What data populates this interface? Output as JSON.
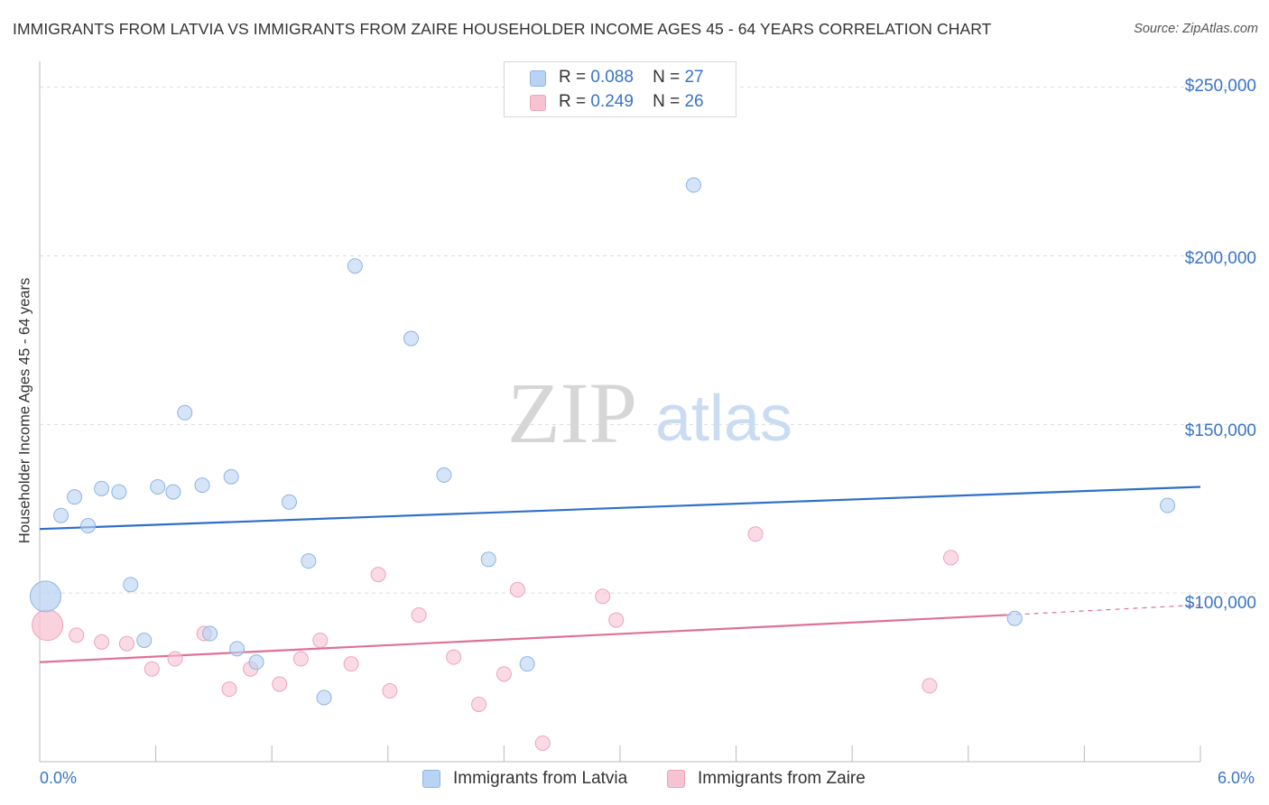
{
  "title": "IMMIGRANTS FROM LATVIA VS IMMIGRANTS FROM ZAIRE HOUSEHOLDER INCOME AGES 45 - 64 YEARS CORRELATION CHART",
  "source": "Source: ZipAtlas.com",
  "watermark": {
    "zip": "ZIP",
    "atlas": "atlas"
  },
  "legend": [
    {
      "r_label": "R =",
      "r_value": "0.088",
      "n_label": "N =",
      "n_value": "27"
    },
    {
      "r_label": "R =",
      "r_value": "0.249",
      "n_label": "N =",
      "n_value": "26"
    }
  ],
  "colors": {
    "latvia_fill": "#b9d3f2",
    "latvia_stroke": "#8db4e6",
    "latvia_line": "#2f6fc9",
    "zaire_fill": "#f7c3d3",
    "zaire_stroke": "#eea3bb",
    "zaire_line": "#e0709a",
    "axis_text": "#3a74c4",
    "grid": "#dddddd"
  },
  "chart_data": {
    "type": "scatter",
    "title": "IMMIGRANTS FROM LATVIA VS IMMIGRANTS FROM ZAIRE HOUSEHOLDER INCOME AGES 45 - 64 YEARS CORRELATION CHART",
    "xlabel": "",
    "ylabel": "Householder Income Ages 45 - 64 years",
    "xlim": [
      0,
      6
    ],
    "ylim": [
      50000,
      255000
    ],
    "x_tick_labels": [
      "0.0%",
      "6.0%"
    ],
    "y_ticks": [
      100000,
      150000,
      200000,
      250000
    ],
    "y_tick_labels": [
      "$100,000",
      "$150,000",
      "$200,000",
      "$250,000"
    ],
    "grid": true,
    "series": [
      {
        "name": "Immigrants from Latvia",
        "r": 0.088,
        "n": 27,
        "trend": {
          "x": [
            0,
            6
          ],
          "y": [
            119000,
            131500
          ]
        },
        "points": [
          {
            "x": 0.03,
            "y": 99000,
            "big": true
          },
          {
            "x": 0.11,
            "y": 123000
          },
          {
            "x": 0.18,
            "y": 128500
          },
          {
            "x": 0.25,
            "y": 120000
          },
          {
            "x": 0.32,
            "y": 131000
          },
          {
            "x": 0.41,
            "y": 130000
          },
          {
            "x": 0.47,
            "y": 102500
          },
          {
            "x": 0.54,
            "y": 86000
          },
          {
            "x": 0.61,
            "y": 131500
          },
          {
            "x": 0.69,
            "y": 130000
          },
          {
            "x": 0.75,
            "y": 153500
          },
          {
            "x": 0.84,
            "y": 132000
          },
          {
            "x": 0.88,
            "y": 88000
          },
          {
            "x": 0.99,
            "y": 134500
          },
          {
            "x": 1.02,
            "y": 83500
          },
          {
            "x": 1.12,
            "y": 79500
          },
          {
            "x": 1.29,
            "y": 127000
          },
          {
            "x": 1.39,
            "y": 109500
          },
          {
            "x": 1.47,
            "y": 69000
          },
          {
            "x": 1.63,
            "y": 197000
          },
          {
            "x": 1.92,
            "y": 175500
          },
          {
            "x": 2.09,
            "y": 135000
          },
          {
            "x": 2.32,
            "y": 110000
          },
          {
            "x": 2.52,
            "y": 79000
          },
          {
            "x": 3.38,
            "y": 221000
          },
          {
            "x": 5.04,
            "y": 92500
          },
          {
            "x": 5.83,
            "y": 126000
          }
        ]
      },
      {
        "name": "Immigrants from Zaire",
        "r": 0.249,
        "n": 26,
        "trend": {
          "x": [
            0,
            5.0
          ],
          "y": [
            79500,
            93500
          ],
          "dashed_to": {
            "x": 6,
            "y": 96500
          }
        },
        "points": [
          {
            "x": 0.04,
            "y": 90500,
            "big": true
          },
          {
            "x": 0.19,
            "y": 87500
          },
          {
            "x": 0.32,
            "y": 85500
          },
          {
            "x": 0.45,
            "y": 85000
          },
          {
            "x": 0.58,
            "y": 77500
          },
          {
            "x": 0.7,
            "y": 80500
          },
          {
            "x": 0.85,
            "y": 88000
          },
          {
            "x": 0.98,
            "y": 71500
          },
          {
            "x": 1.09,
            "y": 77500
          },
          {
            "x": 1.24,
            "y": 73000
          },
          {
            "x": 1.35,
            "y": 80500
          },
          {
            "x": 1.45,
            "y": 86000
          },
          {
            "x": 1.61,
            "y": 79000
          },
          {
            "x": 1.75,
            "y": 105500
          },
          {
            "x": 1.81,
            "y": 71000
          },
          {
            "x": 1.96,
            "y": 93500
          },
          {
            "x": 2.14,
            "y": 81000
          },
          {
            "x": 2.27,
            "y": 67000
          },
          {
            "x": 2.4,
            "y": 76000
          },
          {
            "x": 2.47,
            "y": 101000
          },
          {
            "x": 2.6,
            "y": 55500
          },
          {
            "x": 2.91,
            "y": 99000
          },
          {
            "x": 2.98,
            "y": 92000
          },
          {
            "x": 3.7,
            "y": 117500
          },
          {
            "x": 4.6,
            "y": 72500
          },
          {
            "x": 4.71,
            "y": 110500
          }
        ]
      }
    ]
  }
}
